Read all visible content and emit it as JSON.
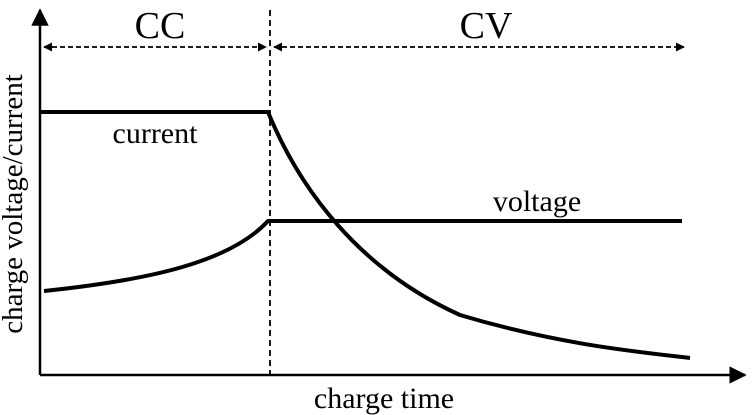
{
  "phases": {
    "cc_label": "CC",
    "cv_label": "CV"
  },
  "curves": {
    "current_label": "current",
    "voltage_label": "voltage"
  },
  "axes": {
    "y_label": "charge voltage/current",
    "x_label": "charge time"
  },
  "colors": {
    "ink": "#000000",
    "background": "#ffffff"
  }
}
